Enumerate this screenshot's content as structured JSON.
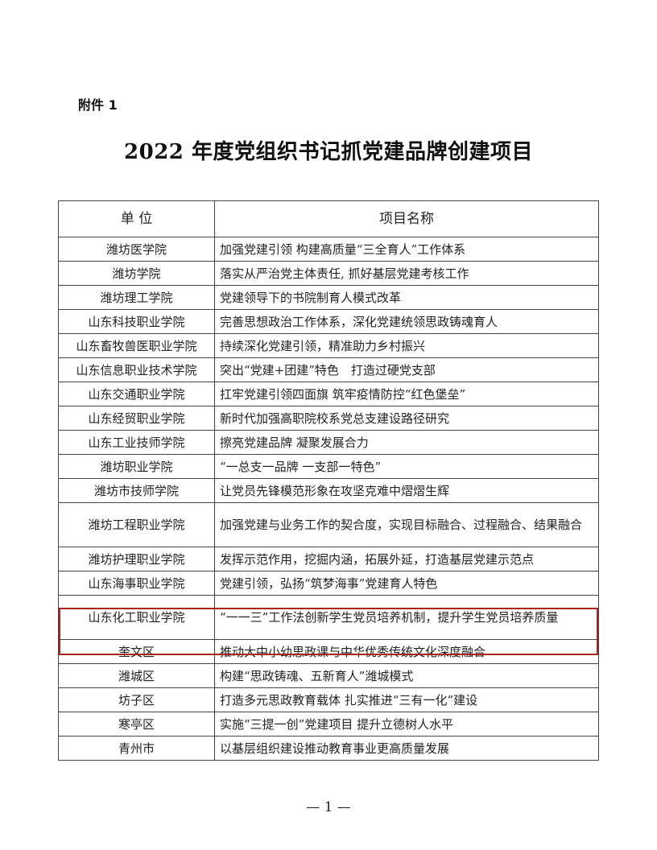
{
  "attachment_label": "附件 1",
  "title": "2022 年度党组织书记抓党建品牌创建项目",
  "table": {
    "headers": [
      "单 位",
      "项目名称"
    ],
    "rows": [
      {
        "unit": "潍坊医学院",
        "project": "加强党建引领 构建高质量“三全育人”工作体系"
      },
      {
        "unit": "潍坊学院",
        "project": "落实从严治党主体责任, 抓好基层党建考核工作"
      },
      {
        "unit": "潍坊理工学院",
        "project": "党建领导下的书院制育人模式改革"
      },
      {
        "unit": "山东科技职业学院",
        "project": "完善思想政治工作体系，深化党建统领思政铸魂育人"
      },
      {
        "unit": "山东畜牧兽医职业学院",
        "project": "持续深化党建引领，精准助力乡村振兴"
      },
      {
        "unit": "山东信息职业技术学院",
        "project": "突出“党建+团建”特色　打造过硬党支部"
      },
      {
        "unit": "山东交通职业学院",
        "project": "扛牢党建引领四面旗 筑牢疫情防控“红色堡垒”"
      },
      {
        "unit": "山东经贸职业学院",
        "project": "新时代加强高职院校系党总支建设路径研究"
      },
      {
        "unit": "山东工业技师学院",
        "project": "擦亮党建品牌 凝聚发展合力"
      },
      {
        "unit": "潍坊职业学院",
        "project": "“一总支一品牌 一支部一特色”"
      },
      {
        "unit": "潍坊市技师学院",
        "project": "让党员先锋模范形象在攻坚克难中熠熠生辉"
      },
      {
        "unit": "潍坊工程职业学院",
        "project": "加强党建与业务工作的契合度，实现目标融合、过程融合、结果融合"
      },
      {
        "unit": "潍坊护理职业学院",
        "project": "发挥示范作用，挖掘内涵，拓展外延，打造基层党建示范点"
      },
      {
        "unit": "山东海事职业学院",
        "project": "党建引领，弘扬“筑梦海事”党建育人特色"
      },
      {
        "unit": "山东化工职业学院",
        "project": "“一一三”工作法创新学生党员培养机制，提升学生党员培养质量",
        "highlighted": true
      },
      {
        "unit": "奎文区",
        "project": "推动大中小幼思政课与中华优秀传统文化深度融合"
      },
      {
        "unit": "潍城区",
        "project": "构建“思政铸魂、五新育人”潍城模式"
      },
      {
        "unit": "坊子区",
        "project": "打造多元思政教育载体 扎实推进“三有一化”建设"
      },
      {
        "unit": "寒亭区",
        "project": "实施“三提一创”党建项目 提升立德树人水平"
      },
      {
        "unit": "青州市",
        "project": "以基层组织建设推动教育事业更高质量发展"
      }
    ]
  },
  "highlight_color": "#a8241c",
  "page_number": "— 1 —"
}
